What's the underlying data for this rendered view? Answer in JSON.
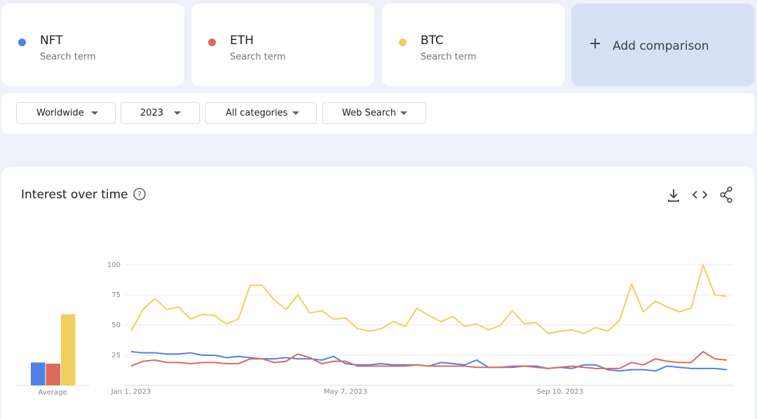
{
  "terms": [
    {
      "name": "NFT",
      "subtitle": "Search term"
    },
    {
      "name": "ETH",
      "subtitle": "Search term"
    },
    {
      "name": "BTC",
      "subtitle": "Search term"
    }
  ],
  "add_comparison": "Add comparison",
  "filters": [
    "Worldwide",
    "2023",
    "All categories",
    "Web Search"
  ],
  "panel_title": "Interest over time",
  "chart_data": {
    "type": "line",
    "categories": [
      "Jan 1, 2023",
      null,
      null,
      null,
      null,
      null,
      null,
      null,
      null,
      null,
      null,
      null,
      null,
      null,
      null,
      null,
      null,
      null,
      "May 7, 2023",
      null,
      null,
      null,
      null,
      null,
      null,
      null,
      null,
      null,
      null,
      null,
      null,
      null,
      null,
      null,
      null,
      null,
      "Sep 10, 2023",
      null,
      null,
      null,
      null,
      null,
      null,
      null,
      null,
      null,
      null,
      null,
      null,
      null,
      null
    ],
    "average_label": "Average",
    "series": [
      {
        "name": "NFT",
        "color": "#4f81e8",
        "average": 19,
        "values": [
          28,
          27,
          27,
          26,
          26,
          27,
          25,
          25,
          23,
          24,
          23,
          22,
          22,
          23,
          22,
          22,
          21,
          24,
          18,
          17,
          17,
          18,
          17,
          17,
          17,
          16,
          19,
          18,
          17,
          21,
          15,
          15,
          15,
          16,
          16,
          14,
          15,
          14,
          17,
          17,
          13,
          12,
          13,
          13,
          12,
          16,
          15,
          14,
          14,
          14,
          13
        ]
      },
      {
        "name": "ETH",
        "color": "#db6b5e",
        "average": 18,
        "values": [
          16,
          20,
          21,
          19,
          19,
          18,
          19,
          19,
          18,
          18,
          22,
          22,
          19,
          20,
          26,
          23,
          18,
          20,
          20,
          16,
          16,
          16,
          16,
          16,
          17,
          16,
          16,
          16,
          16,
          15,
          15,
          15,
          16,
          16,
          15,
          14,
          15,
          16,
          15,
          14,
          14,
          14,
          19,
          17,
          22,
          20,
          19,
          19,
          28,
          22,
          21
        ]
      },
      {
        "name": "BTC",
        "color": "#f2cf5b",
        "average": 59,
        "values": [
          45,
          63,
          72,
          63,
          65,
          55,
          59,
          58,
          51,
          55,
          83,
          83,
          71,
          63,
          75,
          60,
          62,
          55,
          56,
          47,
          45,
          47,
          53,
          49,
          64,
          58,
          53,
          57,
          49,
          51,
          46,
          50,
          62,
          51,
          52,
          43,
          45,
          46,
          43,
          48,
          45,
          54,
          84,
          61,
          70,
          65,
          61,
          64,
          100,
          75,
          74
        ]
      }
    ],
    "ylim": [
      0,
      100
    ],
    "yticks": [
      25,
      50,
      75,
      100
    ],
    "grid": true
  }
}
